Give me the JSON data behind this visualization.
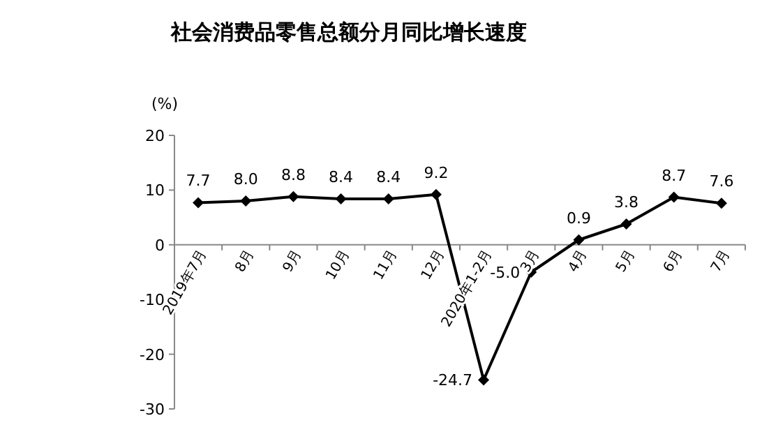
{
  "chart_data": {
    "type": "line",
    "title": "社会消费品零售总额分月同比增长速度",
    "ylabel": "(%)",
    "categories": [
      "2019年7月",
      "8月",
      "9月",
      "10月",
      "11月",
      "12月",
      "2020年1-2月",
      "3月",
      "4月",
      "5月",
      "6月",
      "7月"
    ],
    "series": [
      {
        "color": "#000000",
        "values": [
          7.7,
          8.0,
          8.8,
          8.4,
          8.4,
          9.2,
          -24.7,
          -5.0,
          0.9,
          3.8,
          8.7,
          7.6
        ],
        "value_labels": [
          "7.7",
          "8.0",
          "8.8",
          "8.4",
          "8.4",
          "9.2",
          "-24.7",
          "-5.0",
          "0.9",
          "3.8",
          "8.7",
          "7.6"
        ]
      }
    ],
    "ylim": [
      -30,
      20
    ],
    "yticks": [
      -30,
      -20,
      -10,
      0,
      10,
      20
    ],
    "marker": "diamond",
    "line_style": "solid",
    "grid": false
  }
}
